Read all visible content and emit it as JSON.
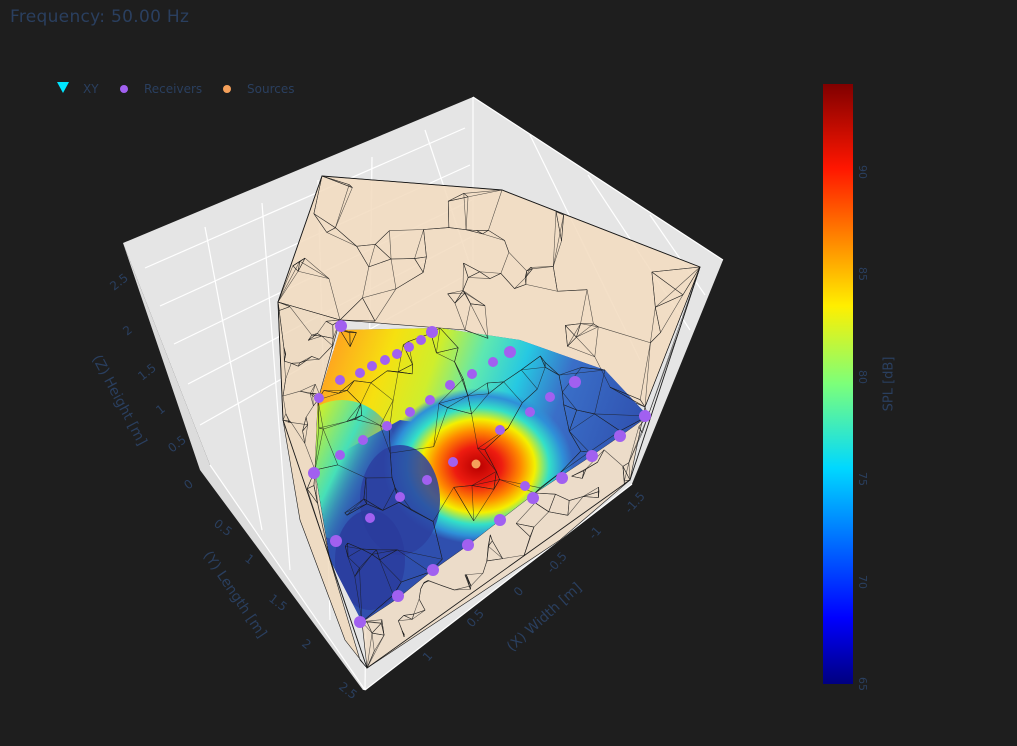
{
  "title": "Frequency: 50.00 Hz",
  "legend": [
    {
      "label": "XY",
      "symbol": "triangle-down",
      "color": "#00e5ff"
    },
    {
      "label": "Receivers",
      "symbol": "circle",
      "color": "#a160f0"
    },
    {
      "label": "Sources",
      "symbol": "circle",
      "color": "#f5a05a"
    }
  ],
  "colors": {
    "background": "#1e1e1e",
    "scene_bg": "#e5e5e5",
    "text": "#2a3f5f",
    "mesh_fill": "#f2dcc0",
    "mesh_lines": "#1a1a1a",
    "receivers": "#a160f0",
    "sources": "#f5a05a",
    "colormap": "jet"
  },
  "colorbar": {
    "title": "SPL [dB]",
    "min": 65,
    "max": 94.3,
    "ticks": [
      "65",
      "70",
      "75",
      "80",
      "85",
      "90"
    ]
  },
  "chart_data": {
    "type": "surface",
    "title": "Frequency: 50.00 Hz",
    "axes": {
      "x": {
        "label": "(X) Width [m]",
        "ticks": [
          "1",
          "0.5",
          "0",
          "-0.5",
          "-1",
          "-1.5"
        ],
        "range": [
          -1.6,
          1.3
        ]
      },
      "y": {
        "label": "(Y) Length [m]",
        "ticks": [
          "0",
          "0.5",
          "1",
          "1.5",
          "2",
          "2.5"
        ],
        "range": [
          0,
          2.6
        ]
      },
      "z": {
        "label": "(Z) Height [m]",
        "ticks": [
          "0",
          "0.5",
          "1",
          "1.5",
          "2",
          "2.5"
        ],
        "range": [
          0,
          2.7
        ]
      }
    },
    "grid": true,
    "legend_position": "top-left",
    "series": [
      {
        "name": "XY",
        "kind": "spl-slice",
        "z_level_m": 1.2,
        "colorscale": "jet",
        "spl_range_db": [
          67,
          94
        ],
        "peak_spl_db": 93
      },
      {
        "name": "Receivers",
        "kind": "scatter3d",
        "count": 40
      },
      {
        "name": "Sources",
        "kind": "scatter3d",
        "count": 1
      }
    ]
  }
}
